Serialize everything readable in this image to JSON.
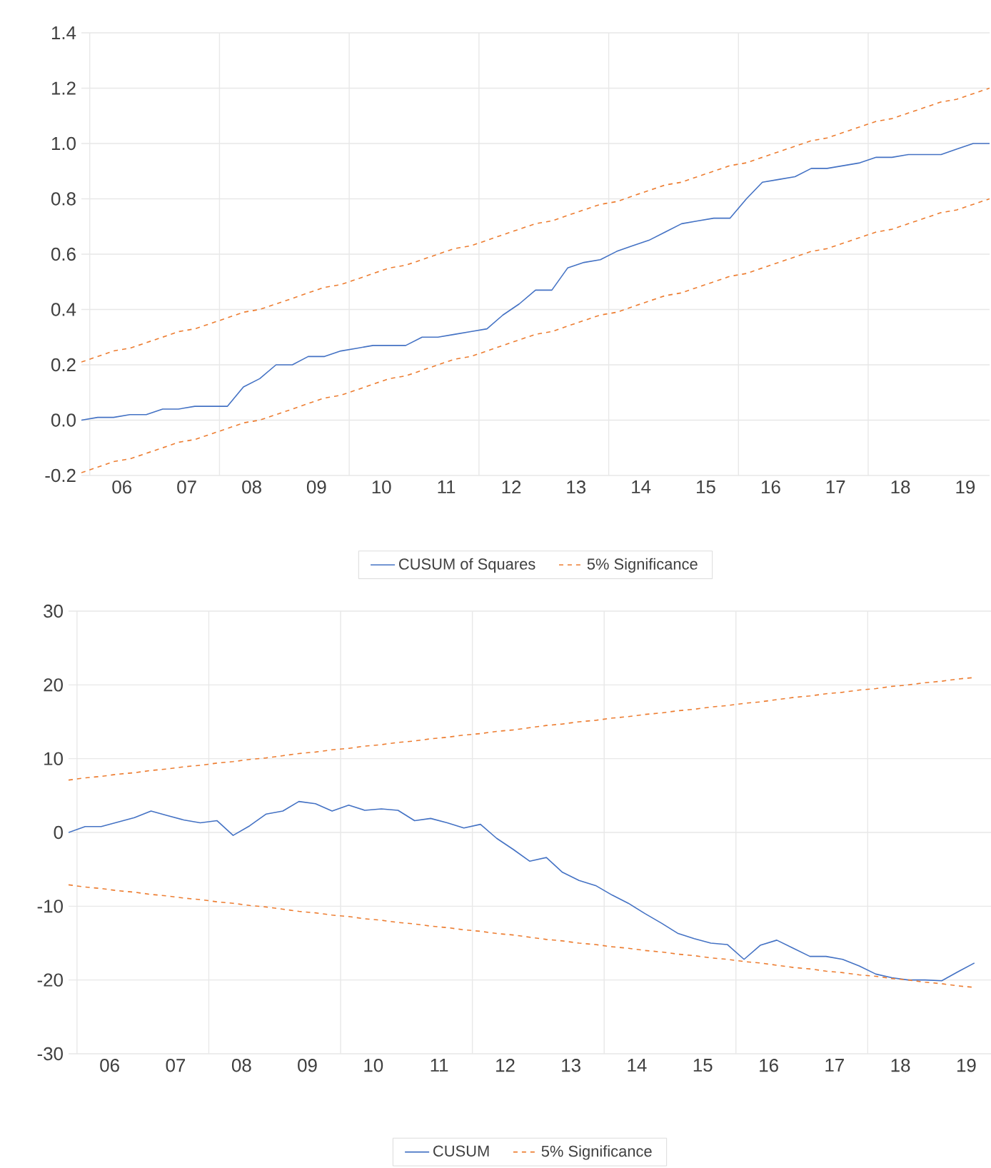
{
  "chart_data": [
    {
      "type": "line",
      "marker": "none",
      "grid": true,
      "legend": "bottom",
      "x": [
        "2005-11-15",
        "2006-02-15",
        "2006-05-15",
        "2006-08-15",
        "2006-11-15",
        "2007-02-15",
        "2007-05-15",
        "2007-08-15",
        "2007-11-15",
        "2008-02-15",
        "2008-05-15",
        "2008-08-15",
        "2008-11-15",
        "2009-02-15",
        "2009-05-15",
        "2009-08-15",
        "2009-11-15",
        "2010-02-15",
        "2010-05-15",
        "2010-08-15",
        "2010-11-15",
        "2011-02-15",
        "2011-05-15",
        "2011-08-15",
        "2011-11-15",
        "2012-02-15",
        "2012-05-15",
        "2012-08-15",
        "2012-11-15",
        "2013-02-15",
        "2013-05-15",
        "2013-08-15",
        "2013-11-15",
        "2014-02-15",
        "2014-05-15",
        "2014-08-15",
        "2014-11-15",
        "2015-02-15",
        "2015-05-15",
        "2015-08-15",
        "2015-11-15",
        "2016-02-15",
        "2016-05-15",
        "2016-08-15",
        "2016-11-15",
        "2017-02-15",
        "2017-05-15",
        "2017-08-15",
        "2017-11-15",
        "2018-02-15",
        "2018-05-15",
        "2018-08-15",
        "2018-11-15",
        "2019-02-15",
        "2019-05-15",
        "2019-08-15",
        "2019-11-15"
      ],
      "xlim": [
        "2005-11-15",
        "2019-11-15"
      ],
      "xticks": [
        {
          "value": "2006-01-01",
          "label": null
        },
        {
          "value": "2006-07-01",
          "label": "06"
        },
        {
          "value": "2007-07-01",
          "label": "07"
        },
        {
          "value": "2008-01-01",
          "label": null
        },
        {
          "value": "2008-07-01",
          "label": "08"
        },
        {
          "value": "2009-07-01",
          "label": "09"
        },
        {
          "value": "2010-01-01",
          "label": null
        },
        {
          "value": "2010-07-01",
          "label": "10"
        },
        {
          "value": "2011-07-01",
          "label": "11"
        },
        {
          "value": "2012-01-01",
          "label": null
        },
        {
          "value": "2012-07-01",
          "label": "12"
        },
        {
          "value": "2013-07-01",
          "label": "13"
        },
        {
          "value": "2014-01-01",
          "label": null
        },
        {
          "value": "2014-07-01",
          "label": "14"
        },
        {
          "value": "2015-07-01",
          "label": "15"
        },
        {
          "value": "2016-01-01",
          "label": null
        },
        {
          "value": "2016-07-01",
          "label": "16"
        },
        {
          "value": "2017-07-01",
          "label": "17"
        },
        {
          "value": "2018-01-01",
          "label": null
        },
        {
          "value": "2018-07-01",
          "label": "18"
        },
        {
          "value": "2019-07-01",
          "label": "19"
        }
      ],
      "ylim": [
        -0.2,
        1.4
      ],
      "yticks": [
        -0.2,
        {
          "value": 0,
          "label": "0.0"
        },
        0.2,
        0.4,
        0.6,
        0.8,
        {
          "value": 1,
          "label": "1.0"
        },
        1.2,
        1.4
      ],
      "series": [
        {
          "name": "CUSUM of Squares",
          "color": "#4472c4",
          "values": [
            0.0,
            0.01,
            0.01,
            0.02,
            0.02,
            0.04,
            0.04,
            0.05,
            0.05,
            0.05,
            0.12,
            0.15,
            0.2,
            0.2,
            0.23,
            0.23,
            0.25,
            0.26,
            0.27,
            0.27,
            0.27,
            0.3,
            0.3,
            0.31,
            0.32,
            0.33,
            0.38,
            0.42,
            0.47,
            0.47,
            0.55,
            0.57,
            0.58,
            0.61,
            0.63,
            0.65,
            0.68,
            0.71,
            0.72,
            0.73,
            0.73,
            0.8,
            0.86,
            0.87,
            0.88,
            0.91,
            0.91,
            0.92,
            0.93,
            0.95,
            0.95,
            0.96,
            0.96,
            0.96,
            0.98,
            1.0,
            1.0
          ]
        },
        {
          "name": "5% Significance",
          "color": "#ed7d31",
          "line_style": "dashed",
          "values": [
            0.21,
            0.23,
            0.25,
            0.26,
            0.28,
            0.3,
            0.32,
            0.33,
            0.35,
            0.37,
            0.39,
            0.4,
            0.42,
            0.44,
            0.46,
            0.48,
            0.49,
            0.51,
            0.53,
            0.55,
            0.56,
            0.58,
            0.6,
            0.62,
            0.63,
            0.65,
            0.67,
            0.69,
            0.71,
            0.72,
            0.74,
            0.76,
            0.78,
            0.79,
            0.81,
            0.83,
            0.85,
            0.86,
            0.88,
            0.9,
            0.92,
            0.93,
            0.95,
            0.97,
            0.99,
            1.01,
            1.02,
            1.04,
            1.06,
            1.08,
            1.09,
            1.11,
            1.13,
            1.15,
            1.16,
            1.18,
            1.2
          ]
        },
        {
          "color": "#ed7d31",
          "line_style": "dashed",
          "values": [
            -0.19,
            -0.17,
            -0.15,
            -0.14,
            -0.12,
            -0.1,
            -0.08,
            -0.07,
            -0.05,
            -0.03,
            -0.01,
            0.0,
            0.02,
            0.04,
            0.06,
            0.08,
            0.09,
            0.11,
            0.13,
            0.15,
            0.16,
            0.18,
            0.2,
            0.22,
            0.23,
            0.25,
            0.27,
            0.29,
            0.31,
            0.32,
            0.34,
            0.36,
            0.38,
            0.39,
            0.41,
            0.43,
            0.45,
            0.46,
            0.48,
            0.5,
            0.52,
            0.53,
            0.55,
            0.57,
            0.59,
            0.61,
            0.62,
            0.64,
            0.66,
            0.68,
            0.69,
            0.71,
            0.73,
            0.75,
            0.76,
            0.78,
            0.8
          ]
        }
      ]
    },
    {
      "type": "line",
      "marker": "none",
      "grid": true,
      "legend": "bottom",
      "x": [
        "2005-11-15",
        "2006-02-15",
        "2006-05-15",
        "2006-08-15",
        "2006-11-15",
        "2007-02-15",
        "2007-05-15",
        "2007-08-15",
        "2007-11-15",
        "2008-02-15",
        "2008-05-15",
        "2008-08-15",
        "2008-11-15",
        "2009-02-15",
        "2009-05-15",
        "2009-08-15",
        "2009-11-15",
        "2010-02-15",
        "2010-05-15",
        "2010-08-15",
        "2010-11-15",
        "2011-02-15",
        "2011-05-15",
        "2011-08-15",
        "2011-11-15",
        "2012-02-15",
        "2012-05-15",
        "2012-08-15",
        "2012-11-15",
        "2013-02-15",
        "2013-05-15",
        "2013-08-15",
        "2013-11-15",
        "2014-02-15",
        "2014-05-15",
        "2014-08-15",
        "2014-11-15",
        "2015-02-15",
        "2015-05-15",
        "2015-08-15",
        "2015-11-15",
        "2016-02-15",
        "2016-05-15",
        "2016-08-15",
        "2016-11-15",
        "2017-02-15",
        "2017-05-15",
        "2017-08-15",
        "2017-11-15",
        "2018-02-15",
        "2018-05-15",
        "2018-08-15",
        "2018-11-15",
        "2019-02-15",
        "2019-05-15",
        "2019-08-15"
      ],
      "xlim": [
        "2005-11-15",
        "2019-11-15"
      ],
      "xticks": [
        {
          "value": "2006-01-01",
          "label": null
        },
        {
          "value": "2006-07-01",
          "label": "06"
        },
        {
          "value": "2007-07-01",
          "label": "07"
        },
        {
          "value": "2008-01-01",
          "label": null
        },
        {
          "value": "2008-07-01",
          "label": "08"
        },
        {
          "value": "2009-07-01",
          "label": "09"
        },
        {
          "value": "2010-01-01",
          "label": null
        },
        {
          "value": "2010-07-01",
          "label": "10"
        },
        {
          "value": "2011-07-01",
          "label": "11"
        },
        {
          "value": "2012-01-01",
          "label": null
        },
        {
          "value": "2012-07-01",
          "label": "12"
        },
        {
          "value": "2013-07-01",
          "label": "13"
        },
        {
          "value": "2014-01-01",
          "label": null
        },
        {
          "value": "2014-07-01",
          "label": "14"
        },
        {
          "value": "2015-07-01",
          "label": "15"
        },
        {
          "value": "2016-01-01",
          "label": null
        },
        {
          "value": "2016-07-01",
          "label": "16"
        },
        {
          "value": "2017-07-01",
          "label": "17"
        },
        {
          "value": "2018-01-01",
          "label": null
        },
        {
          "value": "2018-07-01",
          "label": "18"
        },
        {
          "value": "2019-07-01",
          "label": "19"
        }
      ],
      "ylim": [
        -30,
        30
      ],
      "yticks": [
        -30,
        -20,
        -10,
        0,
        10,
        20,
        30
      ],
      "series": [
        {
          "name": "CUSUM",
          "color": "#4472c4",
          "values": [
            0,
            0.8,
            0.8,
            1.4,
            2.0,
            2.9,
            2.3,
            1.7,
            1.3,
            1.6,
            -0.4,
            0.9,
            2.5,
            2.9,
            4.2,
            3.9,
            2.9,
            3.7,
            3.0,
            3.2,
            3.0,
            1.6,
            1.9,
            1.3,
            0.6,
            1.1,
            -0.8,
            -2.3,
            -3.9,
            -3.4,
            -5.4,
            -6.5,
            -7.2,
            -8.5,
            -9.6,
            -11.0,
            -12.3,
            -13.7,
            -14.4,
            -15.0,
            -15.2,
            -17.2,
            -15.3,
            -14.6,
            -15.7,
            -16.8,
            -16.8,
            -17.2,
            -18.1,
            -19.2,
            -19.7,
            -20.0,
            -20.0,
            -20.1,
            -18.9,
            -17.7
          ]
        },
        {
          "name": "5% Significance",
          "color": "#ed7d31",
          "line_style": "dashed",
          "values": [
            7.1,
            7.4,
            7.6,
            7.9,
            8.1,
            8.4,
            8.6,
            8.9,
            9.1,
            9.4,
            9.6,
            9.9,
            10.1,
            10.4,
            10.7,
            10.9,
            11.2,
            11.4,
            11.7,
            11.9,
            12.2,
            12.4,
            12.7,
            12.9,
            13.2,
            13.4,
            13.7,
            13.9,
            14.2,
            14.5,
            14.7,
            15.0,
            15.2,
            15.5,
            15.7,
            16.0,
            16.2,
            16.5,
            16.7,
            17.0,
            17.2,
            17.5,
            17.7,
            18.0,
            18.3,
            18.5,
            18.8,
            19.0,
            19.3,
            19.5,
            19.8,
            20.0,
            20.3,
            20.5,
            20.8,
            21.0
          ]
        },
        {
          "color": "#ed7d31",
          "line_style": "dashed",
          "values": [
            -7.1,
            -7.4,
            -7.6,
            -7.9,
            -8.1,
            -8.4,
            -8.6,
            -8.9,
            -9.1,
            -9.4,
            -9.6,
            -9.9,
            -10.1,
            -10.4,
            -10.7,
            -10.9,
            -11.2,
            -11.4,
            -11.7,
            -11.9,
            -12.2,
            -12.4,
            -12.7,
            -12.9,
            -13.2,
            -13.4,
            -13.7,
            -13.9,
            -14.2,
            -14.5,
            -14.7,
            -15.0,
            -15.2,
            -15.5,
            -15.7,
            -16.0,
            -16.2,
            -16.5,
            -16.7,
            -17.0,
            -17.2,
            -17.5,
            -17.7,
            -18.0,
            -18.3,
            -18.5,
            -18.8,
            -19.0,
            -19.3,
            -19.5,
            -19.8,
            -20.0,
            -20.3,
            -20.5,
            -20.8,
            -21.0
          ]
        }
      ]
    }
  ]
}
